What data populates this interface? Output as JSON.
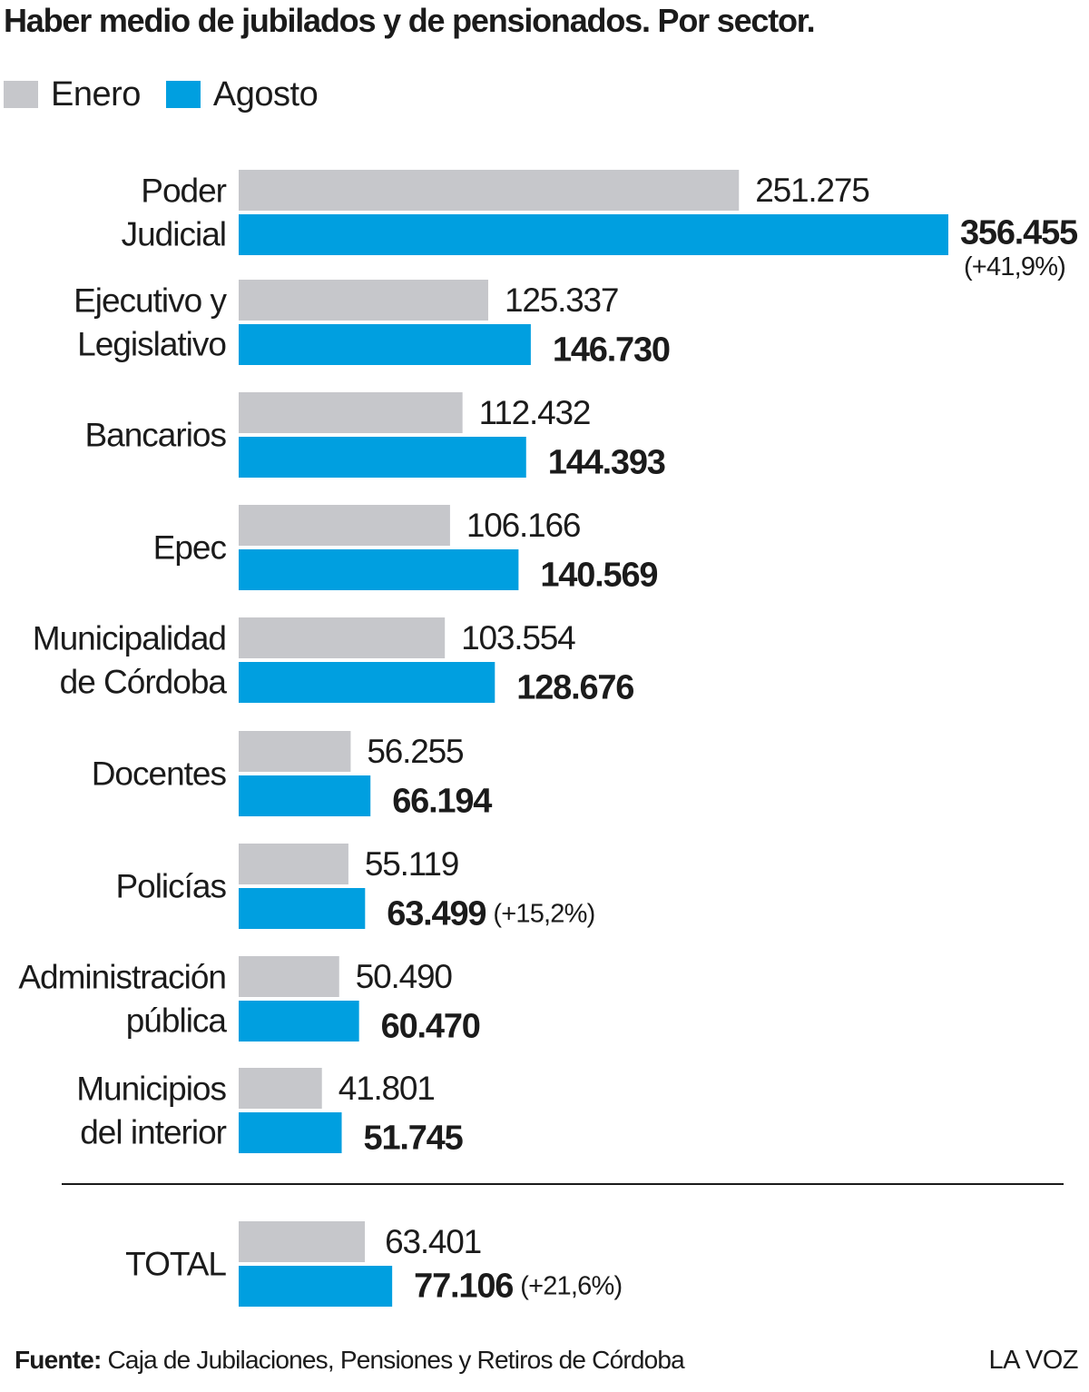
{
  "chart_data": {
    "type": "bar",
    "orientation": "horizontal",
    "title": "Haber medio de jubilados y de pensionados. Por sector.",
    "legend_position": "top-left",
    "grid": false,
    "xlim": [
      0,
      356455
    ],
    "categories": [
      [
        "Poder",
        "Judicial"
      ],
      [
        "Ejecutivo y",
        "Legislativo"
      ],
      [
        "Bancarios"
      ],
      [
        "Epec"
      ],
      [
        "Municipalidad",
        "de Córdoba"
      ],
      [
        "Docentes"
      ],
      [
        "Policías"
      ],
      [
        "Administración",
        "pública"
      ],
      [
        "Municipios",
        "del interior"
      ]
    ],
    "series": [
      {
        "name": "Enero",
        "color": "#c6c7cb",
        "values": [
          251275,
          125337,
          112432,
          106166,
          103554,
          56255,
          55119,
          50490,
          41801
        ],
        "labels": [
          "251.275",
          "125.337",
          "112.432",
          "106.166",
          "103.554",
          "56.255",
          "55.119",
          "50.490",
          "41.801"
        ]
      },
      {
        "name": "Agosto",
        "color": "#009fe0",
        "values": [
          356455,
          146730,
          144393,
          140569,
          128676,
          66194,
          63499,
          60470,
          51745
        ],
        "labels": [
          "356.455",
          "146.730",
          "144.393",
          "140.569",
          "128.676",
          "66.194",
          "63.499",
          "60.470",
          "51.745"
        ]
      }
    ],
    "annotations": [
      "(+41,9%)",
      "",
      "",
      "",
      "",
      "",
      "(+15,2%)",
      "",
      ""
    ],
    "total": {
      "label": "TOTAL",
      "values": [
        63401,
        77106
      ],
      "labels": [
        "63.401",
        "77.106"
      ],
      "annotation": "(+21,6%)"
    }
  },
  "footer": {
    "source_label": "Fuente:",
    "source_text": "Caja de Jubilaciones, Pensiones y Retiros de Córdoba",
    "brand": "LA VOZ"
  }
}
